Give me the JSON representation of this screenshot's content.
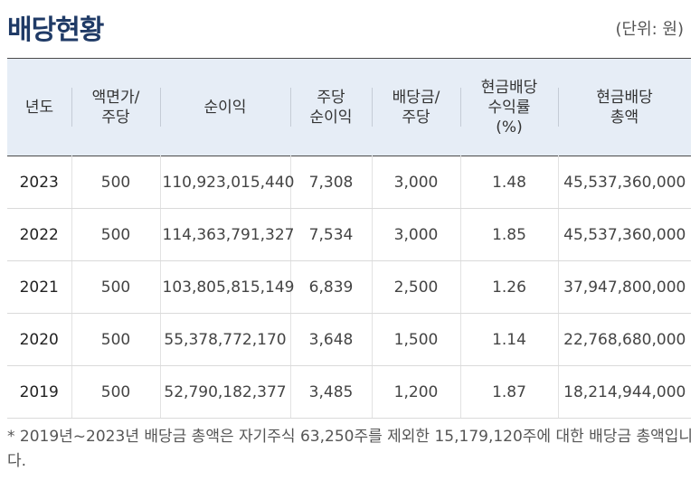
{
  "title": "배당현황",
  "unit": "(단위: 원)",
  "columns": [
    "년도",
    "액면가/\n주당",
    "순이익",
    "주당\n순이익",
    "배당금/\n주당",
    "현금배당\n수익률\n(%)",
    "현금배당\n총액"
  ],
  "rows": [
    [
      "2023",
      "500",
      "110,923,015,440",
      "7,308",
      "3,000",
      "1.48",
      "45,537,360,000"
    ],
    [
      "2022",
      "500",
      "114,363,791,327",
      "7,534",
      "3,000",
      "1.85",
      "45,537,360,000"
    ],
    [
      "2021",
      "500",
      "103,805,815,149",
      "6,839",
      "2,500",
      "1.26",
      "37,947,800,000"
    ],
    [
      "2020",
      "500",
      "55,378,772,170",
      "3,648",
      "1,500",
      "1.14",
      "22,768,680,000"
    ],
    [
      "2019",
      "500",
      "52,790,182,377",
      "3,485",
      "1,200",
      "1.87",
      "18,214,944,000"
    ]
  ],
  "note": "* 2019년~2023년 배당금 총액은 자기주식 63,250주를 제외한 15,179,120주에 대한 배당금 총액입니다.",
  "colors": {
    "title": "#1f3a66",
    "header_bg": "#e6edf6"
  }
}
